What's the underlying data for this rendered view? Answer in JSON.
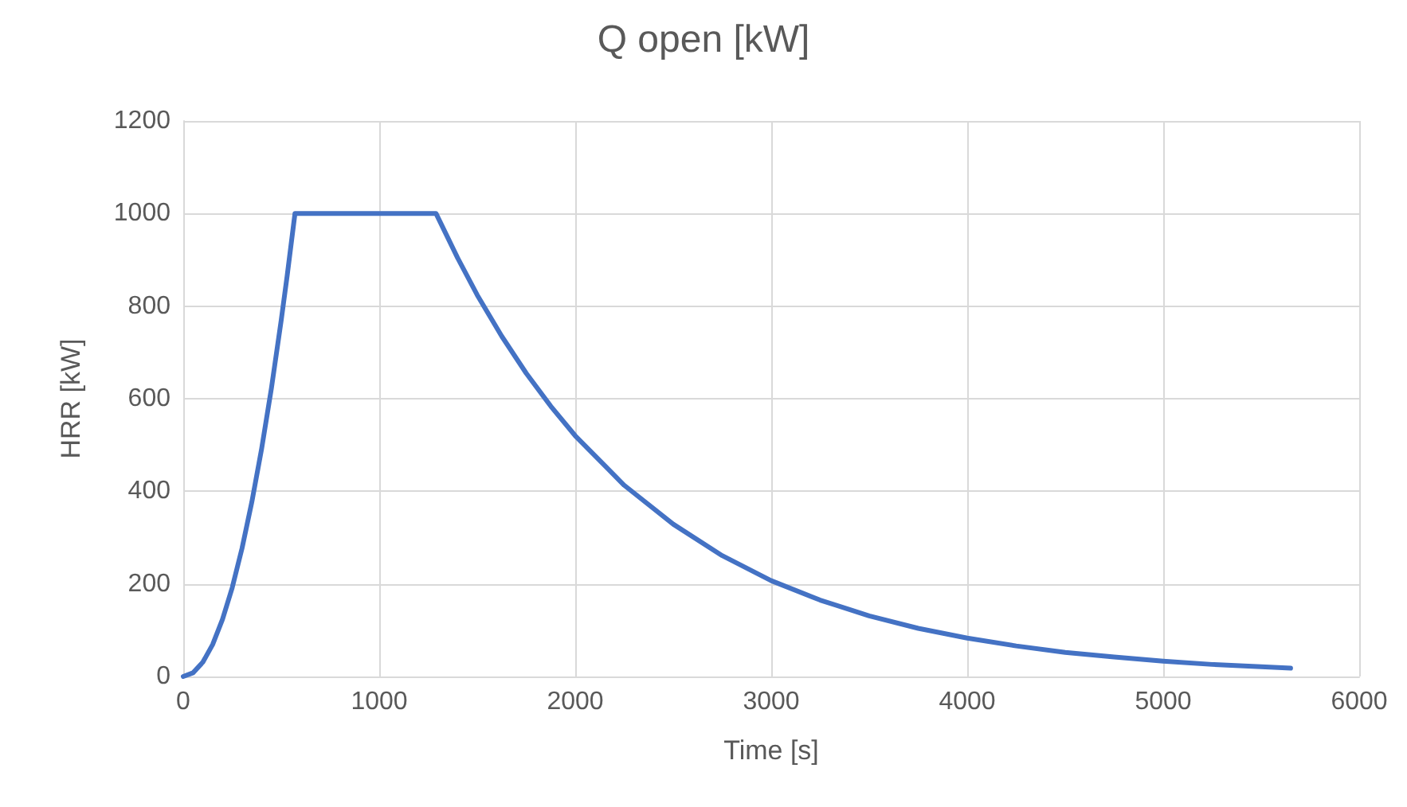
{
  "chart_data": {
    "type": "line",
    "title": "Q open [kW]",
    "xlabel": "Time [s]",
    "ylabel": "HRR [kW]",
    "x": [
      0,
      50,
      100,
      150,
      200,
      250,
      300,
      350,
      400,
      450,
      500,
      530,
      570,
      1290,
      1400,
      1500,
      1625,
      1750,
      1875,
      2000,
      2250,
      2500,
      2750,
      3000,
      3250,
      3500,
      3750,
      4000,
      4250,
      4500,
      4750,
      5000,
      5250,
      5500,
      5650
    ],
    "series": [
      {
        "color": "#4472c4",
        "values": [
          0,
          8,
          31,
          69,
          123,
          192,
          277,
          377,
          492,
          623,
          770,
          865,
          1000,
          1000,
          904,
          824,
          735,
          655,
          584,
          520,
          413,
          329,
          261,
          207,
          165,
          131,
          104,
          83,
          66,
          52,
          42,
          33,
          26,
          21,
          18
        ]
      }
    ],
    "xlim": [
      0,
      6000
    ],
    "xticks": [
      0,
      1000,
      2000,
      3000,
      4000,
      5000,
      6000
    ],
    "ylim": [
      0,
      1200
    ],
    "yticks": [
      0,
      200,
      400,
      600,
      800,
      1000,
      1200
    ],
    "grid": true,
    "marker": "none",
    "line_style": "solid"
  }
}
